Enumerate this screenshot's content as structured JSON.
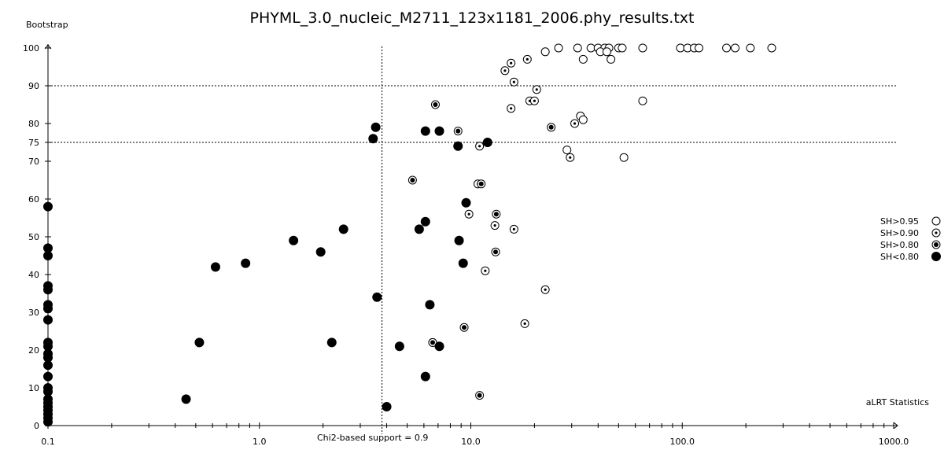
{
  "chart_data": {
    "type": "scatter",
    "title": "PHYML_3.0_nucleic_M2711_123x1181_2006.phy_results.txt",
    "xlabel": "aLRT Statistics",
    "ylabel": "Bootstrap",
    "x_scale": "log",
    "xlim": [
      0.1,
      1000.0
    ],
    "ylim": [
      0,
      100
    ],
    "x_ticks": [
      {
        "value": 0.1,
        "label": "0.1"
      },
      {
        "value": 1.0,
        "label": "1.0"
      },
      {
        "value": 10.0,
        "label": "10.0"
      },
      {
        "value": 100.0,
        "label": "100.0"
      },
      {
        "value": 1000.0,
        "label": "1000.0"
      }
    ],
    "y_ticks": [
      0,
      10,
      20,
      30,
      40,
      50,
      60,
      70,
      75,
      80,
      90,
      100
    ],
    "reference_lines": {
      "horizontal": [
        90,
        75
      ],
      "vertical": {
        "x": 3.8,
        "label": "Chi2-based support = 0.9"
      }
    },
    "legend_position": "right",
    "colors": {
      "marker_stroke": "#000000",
      "marker_fill_empty": "#ffffff",
      "marker_fill_solid": "#000000"
    },
    "series": [
      {
        "name": "SH>0.95",
        "marker": "open-circle",
        "points": [
          [
            22.5,
            99
          ],
          [
            26,
            100
          ],
          [
            32,
            100
          ],
          [
            37,
            100
          ],
          [
            40,
            100
          ],
          [
            43,
            100
          ],
          [
            45,
            100
          ],
          [
            50,
            100
          ],
          [
            52,
            100
          ],
          [
            65,
            100
          ],
          [
            98,
            100
          ],
          [
            106,
            100
          ],
          [
            114,
            100
          ],
          [
            120,
            100
          ],
          [
            162,
            100
          ],
          [
            178,
            100
          ],
          [
            210,
            100
          ],
          [
            265,
            100
          ],
          [
            34,
            97
          ],
          [
            46,
            97
          ],
          [
            41,
            99
          ],
          [
            44,
            99
          ],
          [
            65,
            86
          ],
          [
            33,
            82
          ],
          [
            34,
            81
          ],
          [
            28.5,
            73
          ],
          [
            53,
            71
          ]
        ]
      },
      {
        "name": "SH>0.90",
        "marker": "circle-with-dot",
        "points": [
          [
            14.5,
            94
          ],
          [
            15.5,
            96
          ],
          [
            18.5,
            97
          ],
          [
            16,
            91
          ],
          [
            20.5,
            89
          ],
          [
            15.5,
            84
          ],
          [
            19,
            86
          ],
          [
            20,
            86
          ],
          [
            31,
            80
          ],
          [
            29.5,
            71
          ],
          [
            11,
            74
          ],
          [
            10.8,
            64
          ],
          [
            9.8,
            56
          ],
          [
            13,
            53
          ],
          [
            16,
            52
          ],
          [
            11.7,
            41
          ],
          [
            22.5,
            36
          ],
          [
            18,
            27
          ],
          [
            6.6,
            22
          ]
        ]
      },
      {
        "name": "SH>0.80",
        "marker": "dotted-circle",
        "points": [
          [
            6.8,
            85
          ],
          [
            8.7,
            78
          ],
          [
            24,
            79
          ],
          [
            5.3,
            65
          ],
          [
            11.2,
            64
          ],
          [
            13.2,
            56
          ],
          [
            13.1,
            46
          ],
          [
            9.3,
            26
          ],
          [
            11,
            8
          ],
          [
            6.6,
            22
          ]
        ]
      },
      {
        "name": "SH<0.80",
        "marker": "filled-circle",
        "points": [
          [
            0.1,
            58
          ],
          [
            0.1,
            47
          ],
          [
            0.1,
            45
          ],
          [
            0.1,
            37
          ],
          [
            0.1,
            36
          ],
          [
            0.1,
            32
          ],
          [
            0.1,
            31
          ],
          [
            0.1,
            28
          ],
          [
            0.1,
            22
          ],
          [
            0.1,
            21
          ],
          [
            0.1,
            19
          ],
          [
            0.1,
            18
          ],
          [
            0.1,
            16
          ],
          [
            0.1,
            13
          ],
          [
            0.1,
            10
          ],
          [
            0.1,
            9
          ],
          [
            0.1,
            7
          ],
          [
            0.1,
            6
          ],
          [
            0.1,
            5
          ],
          [
            0.1,
            4
          ],
          [
            0.1,
            3
          ],
          [
            0.1,
            2
          ],
          [
            0.1,
            1
          ],
          [
            3.55,
            79
          ],
          [
            3.45,
            76
          ],
          [
            6.1,
            78
          ],
          [
            7.1,
            78
          ],
          [
            8.7,
            74
          ],
          [
            12,
            75
          ],
          [
            9.5,
            59
          ],
          [
            2.5,
            52
          ],
          [
            5.7,
            52
          ],
          [
            6.1,
            54
          ],
          [
            1.45,
            49
          ],
          [
            1.95,
            46
          ],
          [
            0.86,
            43
          ],
          [
            0.62,
            42
          ],
          [
            8.8,
            49
          ],
          [
            9.2,
            43
          ],
          [
            3.6,
            34
          ],
          [
            6.4,
            32
          ],
          [
            0.52,
            22
          ],
          [
            2.2,
            22
          ],
          [
            4.6,
            21
          ],
          [
            7.1,
            21
          ],
          [
            6.1,
            13
          ],
          [
            0.45,
            7
          ],
          [
            4.0,
            5
          ]
        ]
      }
    ]
  }
}
